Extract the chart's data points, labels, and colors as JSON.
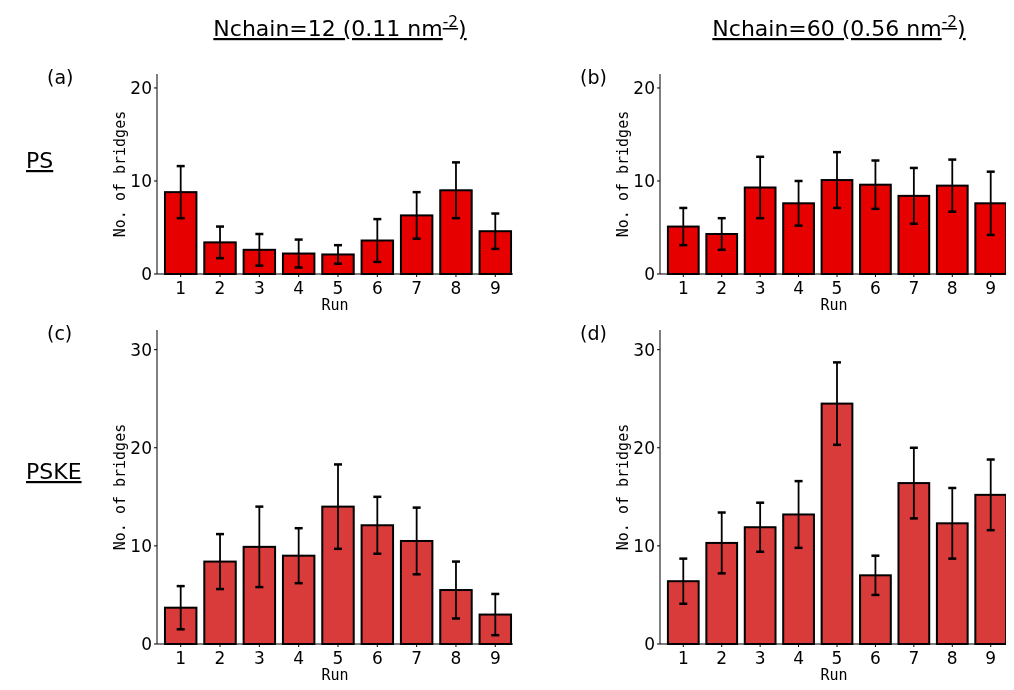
{
  "chart_data": [
    {
      "type": "bar",
      "title": "Nchain=12 (0.11 nm$^{-2}$)",
      "annotations": [
        "(a)",
        "PS"
      ],
      "xlabel": "Run",
      "ylabel": "No. of bridges",
      "categories": [
        "1",
        "2",
        "3",
        "4",
        "5",
        "6",
        "7",
        "8",
        "9"
      ],
      "ylim": [
        0,
        21.5
      ],
      "yticks": [
        0,
        10,
        20
      ],
      "color": "#e60000",
      "values": [
        8.8,
        3.4,
        2.6,
        2.2,
        2.1,
        3.6,
        6.3,
        9.0,
        4.6
      ],
      "errors": [
        2.8,
        1.7,
        1.7,
        1.5,
        1.0,
        2.3,
        2.5,
        3.0,
        1.9
      ]
    },
    {
      "type": "bar",
      "title": "Nchain=60 (0.56 nm$^{-2}$)",
      "annotations": [
        "(b)"
      ],
      "xlabel": "Run",
      "ylabel": "No. of bridges",
      "categories": [
        "1",
        "2",
        "3",
        "4",
        "5",
        "6",
        "7",
        "8",
        "9"
      ],
      "ylim": [
        0,
        21.5
      ],
      "yticks": [
        0,
        10,
        20
      ],
      "color": "#e60000",
      "values": [
        5.1,
        4.3,
        9.3,
        7.6,
        10.1,
        9.6,
        8.4,
        9.5,
        7.6
      ],
      "errors": [
        2.0,
        1.7,
        3.3,
        2.4,
        3.0,
        2.6,
        3.0,
        2.8,
        3.4
      ]
    },
    {
      "type": "bar",
      "annotations": [
        "(c)",
        "PSKE"
      ],
      "xlabel": "Run",
      "ylabel": "No. of bridges",
      "categories": [
        "1",
        "2",
        "3",
        "4",
        "5",
        "6",
        "7",
        "8",
        "9"
      ],
      "ylim": [
        0,
        32
      ],
      "yticks": [
        0,
        10,
        20,
        30
      ],
      "color": "#d93b3b",
      "values": [
        3.7,
        8.4,
        9.9,
        9.0,
        14.0,
        12.1,
        10.5,
        5.5,
        3.0
      ],
      "errors": [
        2.2,
        2.8,
        4.1,
        2.8,
        4.3,
        2.9,
        3.4,
        2.9,
        2.1
      ]
    },
    {
      "type": "bar",
      "annotations": [
        "(d)"
      ],
      "xlabel": "Run",
      "ylabel": "No. of bridges",
      "categories": [
        "1",
        "2",
        "3",
        "4",
        "5",
        "6",
        "7",
        "8",
        "9"
      ],
      "ylim": [
        0,
        32
      ],
      "yticks": [
        0,
        10,
        20,
        30
      ],
      "color": "#d93b3b",
      "values": [
        6.4,
        10.3,
        11.9,
        13.2,
        24.5,
        7.0,
        16.4,
        12.3,
        15.2
      ],
      "errors": [
        2.3,
        3.1,
        2.5,
        3.4,
        4.2,
        2.0,
        3.6,
        3.6,
        3.6
      ]
    }
  ]
}
